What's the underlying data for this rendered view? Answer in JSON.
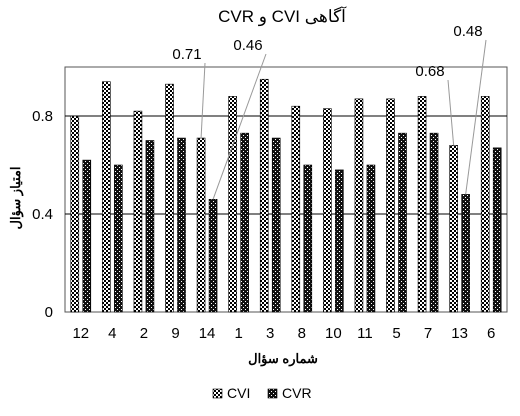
{
  "chart_data": {
    "type": "bar",
    "title": "CVR و CVI آگاهی",
    "xlabel": "شماره سؤال",
    "ylabel": "امتیاز سؤال",
    "categories": [
      "12",
      "4",
      "2",
      "9",
      "14",
      "1",
      "3",
      "8",
      "10",
      "11",
      "5",
      "7",
      "13",
      "6"
    ],
    "series": [
      {
        "name": "CVI",
        "values": [
          0.8,
          0.94,
          0.82,
          0.93,
          0.71,
          0.88,
          0.95,
          0.84,
          0.83,
          0.87,
          0.87,
          0.88,
          0.68,
          0.88
        ]
      },
      {
        "name": "CVR",
        "values": [
          0.62,
          0.6,
          0.7,
          0.71,
          0.46,
          0.73,
          0.71,
          0.6,
          0.58,
          0.6,
          0.73,
          0.73,
          0.48,
          0.67
        ]
      }
    ],
    "ylim": [
      0,
      1
    ],
    "yticks": [
      0,
      0.4,
      0.8
    ],
    "ytick_labels": [
      "0",
      "0.4",
      "0.8"
    ],
    "grid": true,
    "legend_position": "bottom",
    "colors": {
      "cvi_fill": "#ffffff",
      "cvi_pattern": "#000000",
      "cvr_fill": "#111111",
      "cvr_pattern": "#ffffff",
      "grid": "#000000"
    },
    "annotations": [
      {
        "text": "0.71",
        "category": "14",
        "series": "CVI"
      },
      {
        "text": "0.46",
        "category": "14",
        "series": "CVR"
      },
      {
        "text": "0.68",
        "category": "13",
        "series": "CVI"
      },
      {
        "text": "0.48",
        "category": "13",
        "series": "CVR"
      }
    ]
  }
}
